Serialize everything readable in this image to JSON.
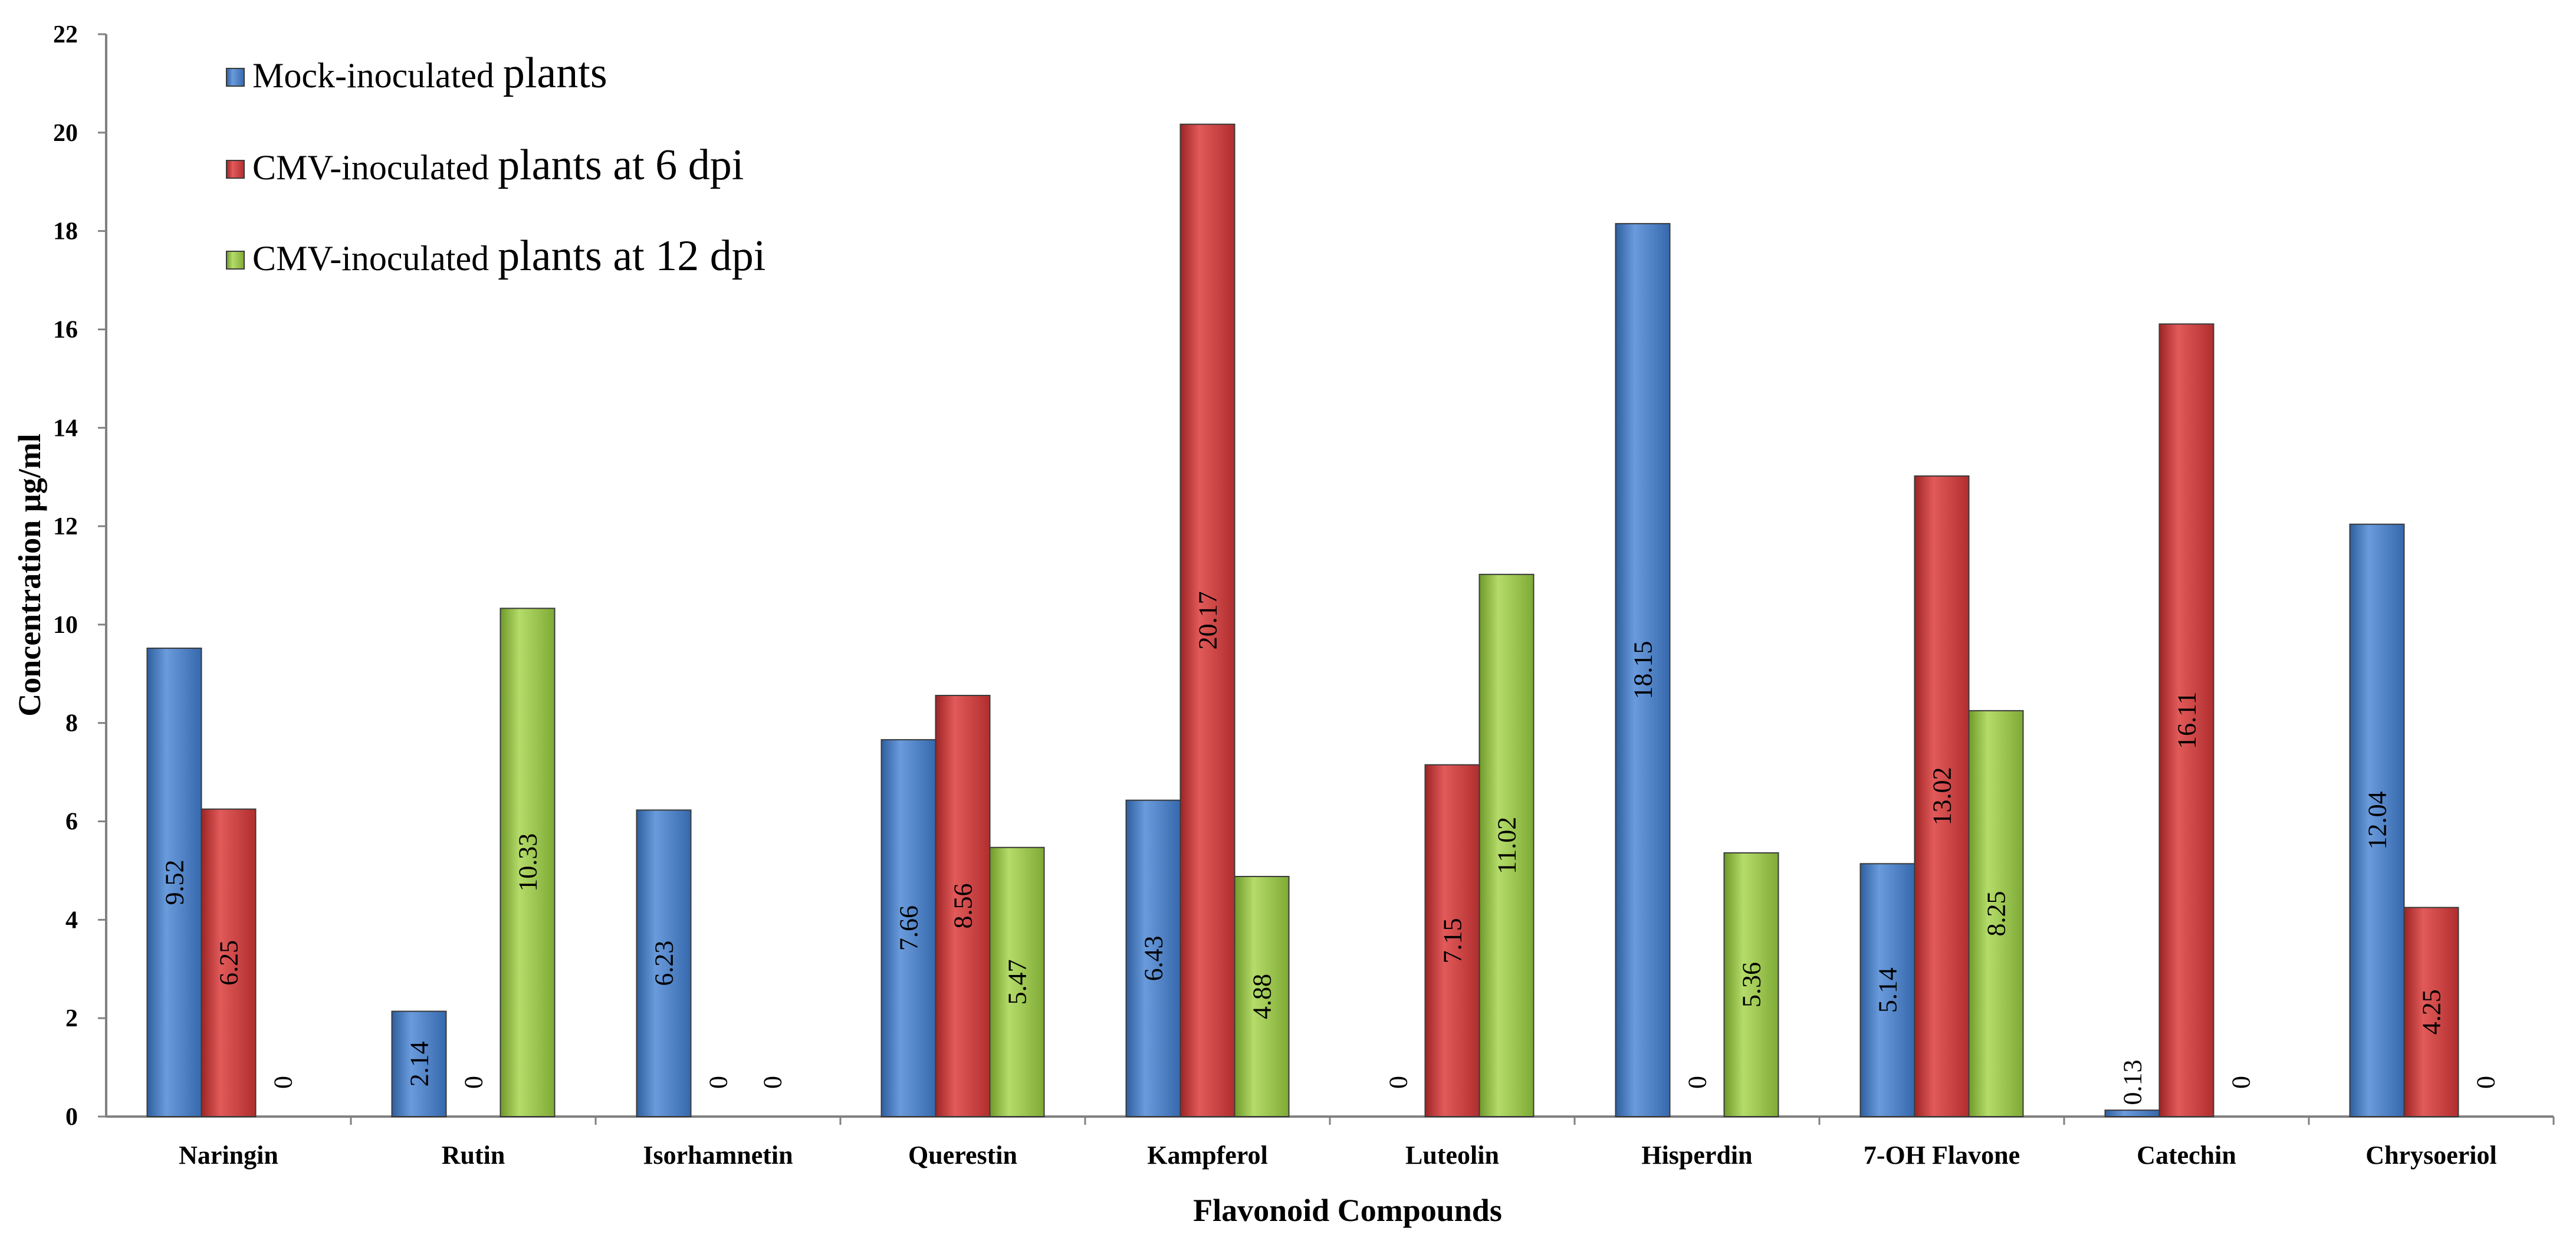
{
  "chart_data": {
    "type": "bar",
    "title": "",
    "xlabel": "Flavonoid Compounds",
    "ylabel": "Concentration µg/ml",
    "ylim": [
      0,
      22
    ],
    "ytick_step": 2,
    "yticks": [
      "0",
      "2",
      "4",
      "6",
      "8",
      "10",
      "12",
      "14",
      "16",
      "18",
      "20",
      "22"
    ],
    "grid": false,
    "legend_position": "top-left",
    "categories": [
      "Naringin",
      "Rutin",
      "Isorhamnetin",
      "Querestin",
      "Kampferol",
      "Luteolin",
      "Hisperdin",
      "7-OH Flavone",
      "Catechin",
      "Chrysoeriol"
    ],
    "series": [
      {
        "name": "Mock-inoculated plants",
        "color": "#4a7ec6",
        "values": [
          9.52,
          2.14,
          6.23,
          7.66,
          6.43,
          0,
          18.15,
          5.14,
          0.13,
          12.04
        ],
        "labels": [
          "9.52",
          "2.14",
          "6.23",
          "7.66",
          "6.43",
          "0",
          "18.15",
          "5.14",
          "0.13",
          "12.04"
        ]
      },
      {
        "name": "CMV-inoculated plants at 6 dpi",
        "color": "#cc3b3b",
        "values": [
          6.25,
          0,
          0,
          8.56,
          20.17,
          7.15,
          0,
          13.02,
          16.11,
          4.25
        ],
        "labels": [
          "6.25",
          "0",
          "0",
          "8.56",
          "20.17",
          "7.15",
          "0",
          "13.02",
          "16.11",
          "4.25"
        ]
      },
      {
        "name": "CMV-inoculated plants at 12 dpi",
        "color": "#98c24a",
        "values": [
          0,
          10.33,
          0,
          5.47,
          4.88,
          11.02,
          5.36,
          8.25,
          0,
          0
        ],
        "labels": [
          "0",
          "10.33",
          "0",
          "5.47",
          "4.88",
          "11.02",
          "5.36",
          "8.25",
          "0",
          "0"
        ]
      }
    ],
    "legend": [
      {
        "prefix": "Mock-inoculated ",
        "suffix": "plants"
      },
      {
        "prefix": "CMV-inoculated ",
        "suffix": "plants at 6 dpi"
      },
      {
        "prefix": "CMV-inoculated ",
        "suffix": "plants at 12 dpi"
      }
    ]
  }
}
